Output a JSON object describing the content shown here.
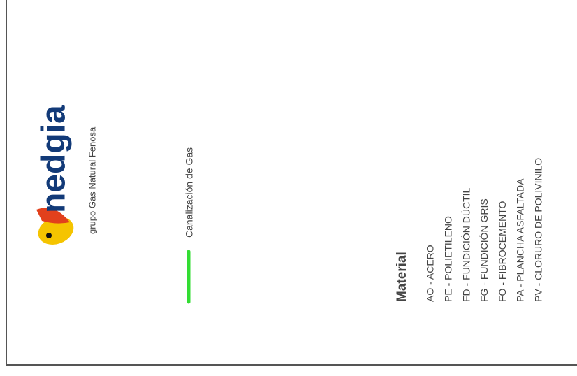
{
  "logo": {
    "name": "nedgia",
    "tagline": "grupo Gas Natural Fenosa"
  },
  "legend": {
    "items": [
      {
        "label": "Canalización de Gas"
      }
    ]
  },
  "materials": {
    "title": "Material",
    "items": [
      "AO - ACERO",
      "PE - POLIETILENO",
      "FD - FUNDICIÓN DÚCTIL",
      "FG - FUNDICIÓN GRIS",
      "FO - FIBROCEMENTO",
      "PA - PLANCHA ASFALTADA",
      "PV - CLORURO DE POLIVINILO"
    ]
  }
}
